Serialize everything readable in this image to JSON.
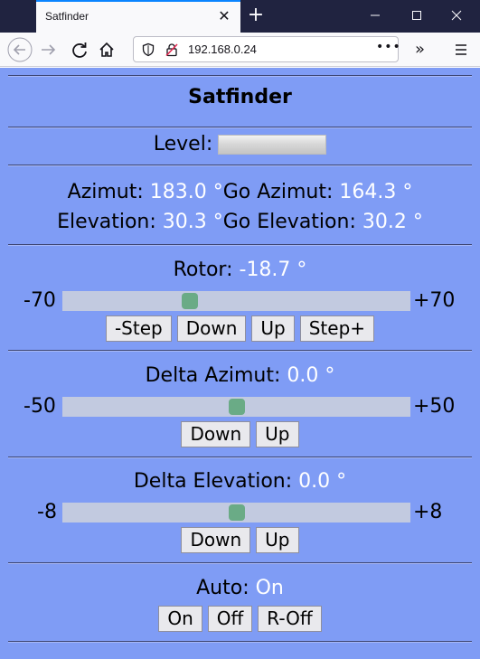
{
  "browser": {
    "tab_title": "Satfinder",
    "url": "192.168.0.24"
  },
  "app": {
    "title": "Satfinder",
    "level": {
      "label": "Level:",
      "value": 0.0
    },
    "azimut": {
      "label": "Azimut:",
      "value": "183.0 °",
      "go_label": "Go Azimut:",
      "go_value": "164.3 °"
    },
    "elevation": {
      "label": "Elevation:",
      "value": "30.3 °",
      "go_label": "Go Elevation:",
      "go_value": "30.2 °"
    },
    "rotor": {
      "label": "Rotor:",
      "value": "-18.7 °",
      "min_label": "-70",
      "max_label": "+70",
      "slider": {
        "min": -70,
        "max": 70,
        "value": -18.7
      },
      "buttons": {
        "step_minus": "-Step",
        "down": "Down",
        "up": "Up",
        "step_plus": "Step+"
      }
    },
    "delta_azimut": {
      "label": "Delta Azimut:",
      "value": "0.0 °",
      "min_label": "-50",
      "max_label": "+50",
      "slider": {
        "min": -50,
        "max": 50,
        "value": 0.0
      },
      "buttons": {
        "down": "Down",
        "up": "Up"
      }
    },
    "delta_elevation": {
      "label": "Delta Elevation:",
      "value": "0.0 °",
      "min_label": "-8",
      "max_label": "+8",
      "slider": {
        "min": -8,
        "max": 8,
        "value": 0.0
      },
      "buttons": {
        "down": "Down",
        "up": "Up"
      }
    },
    "auto": {
      "label": "Auto:",
      "value": "On",
      "buttons": {
        "on": "On",
        "off": "Off",
        "r_off": "R-Off"
      }
    }
  },
  "colors": {
    "page_bg": "#7f9cf5",
    "value_text": "#ffffff",
    "slider_thumb": "#6aab86",
    "slider_track": "#c2cae0"
  }
}
